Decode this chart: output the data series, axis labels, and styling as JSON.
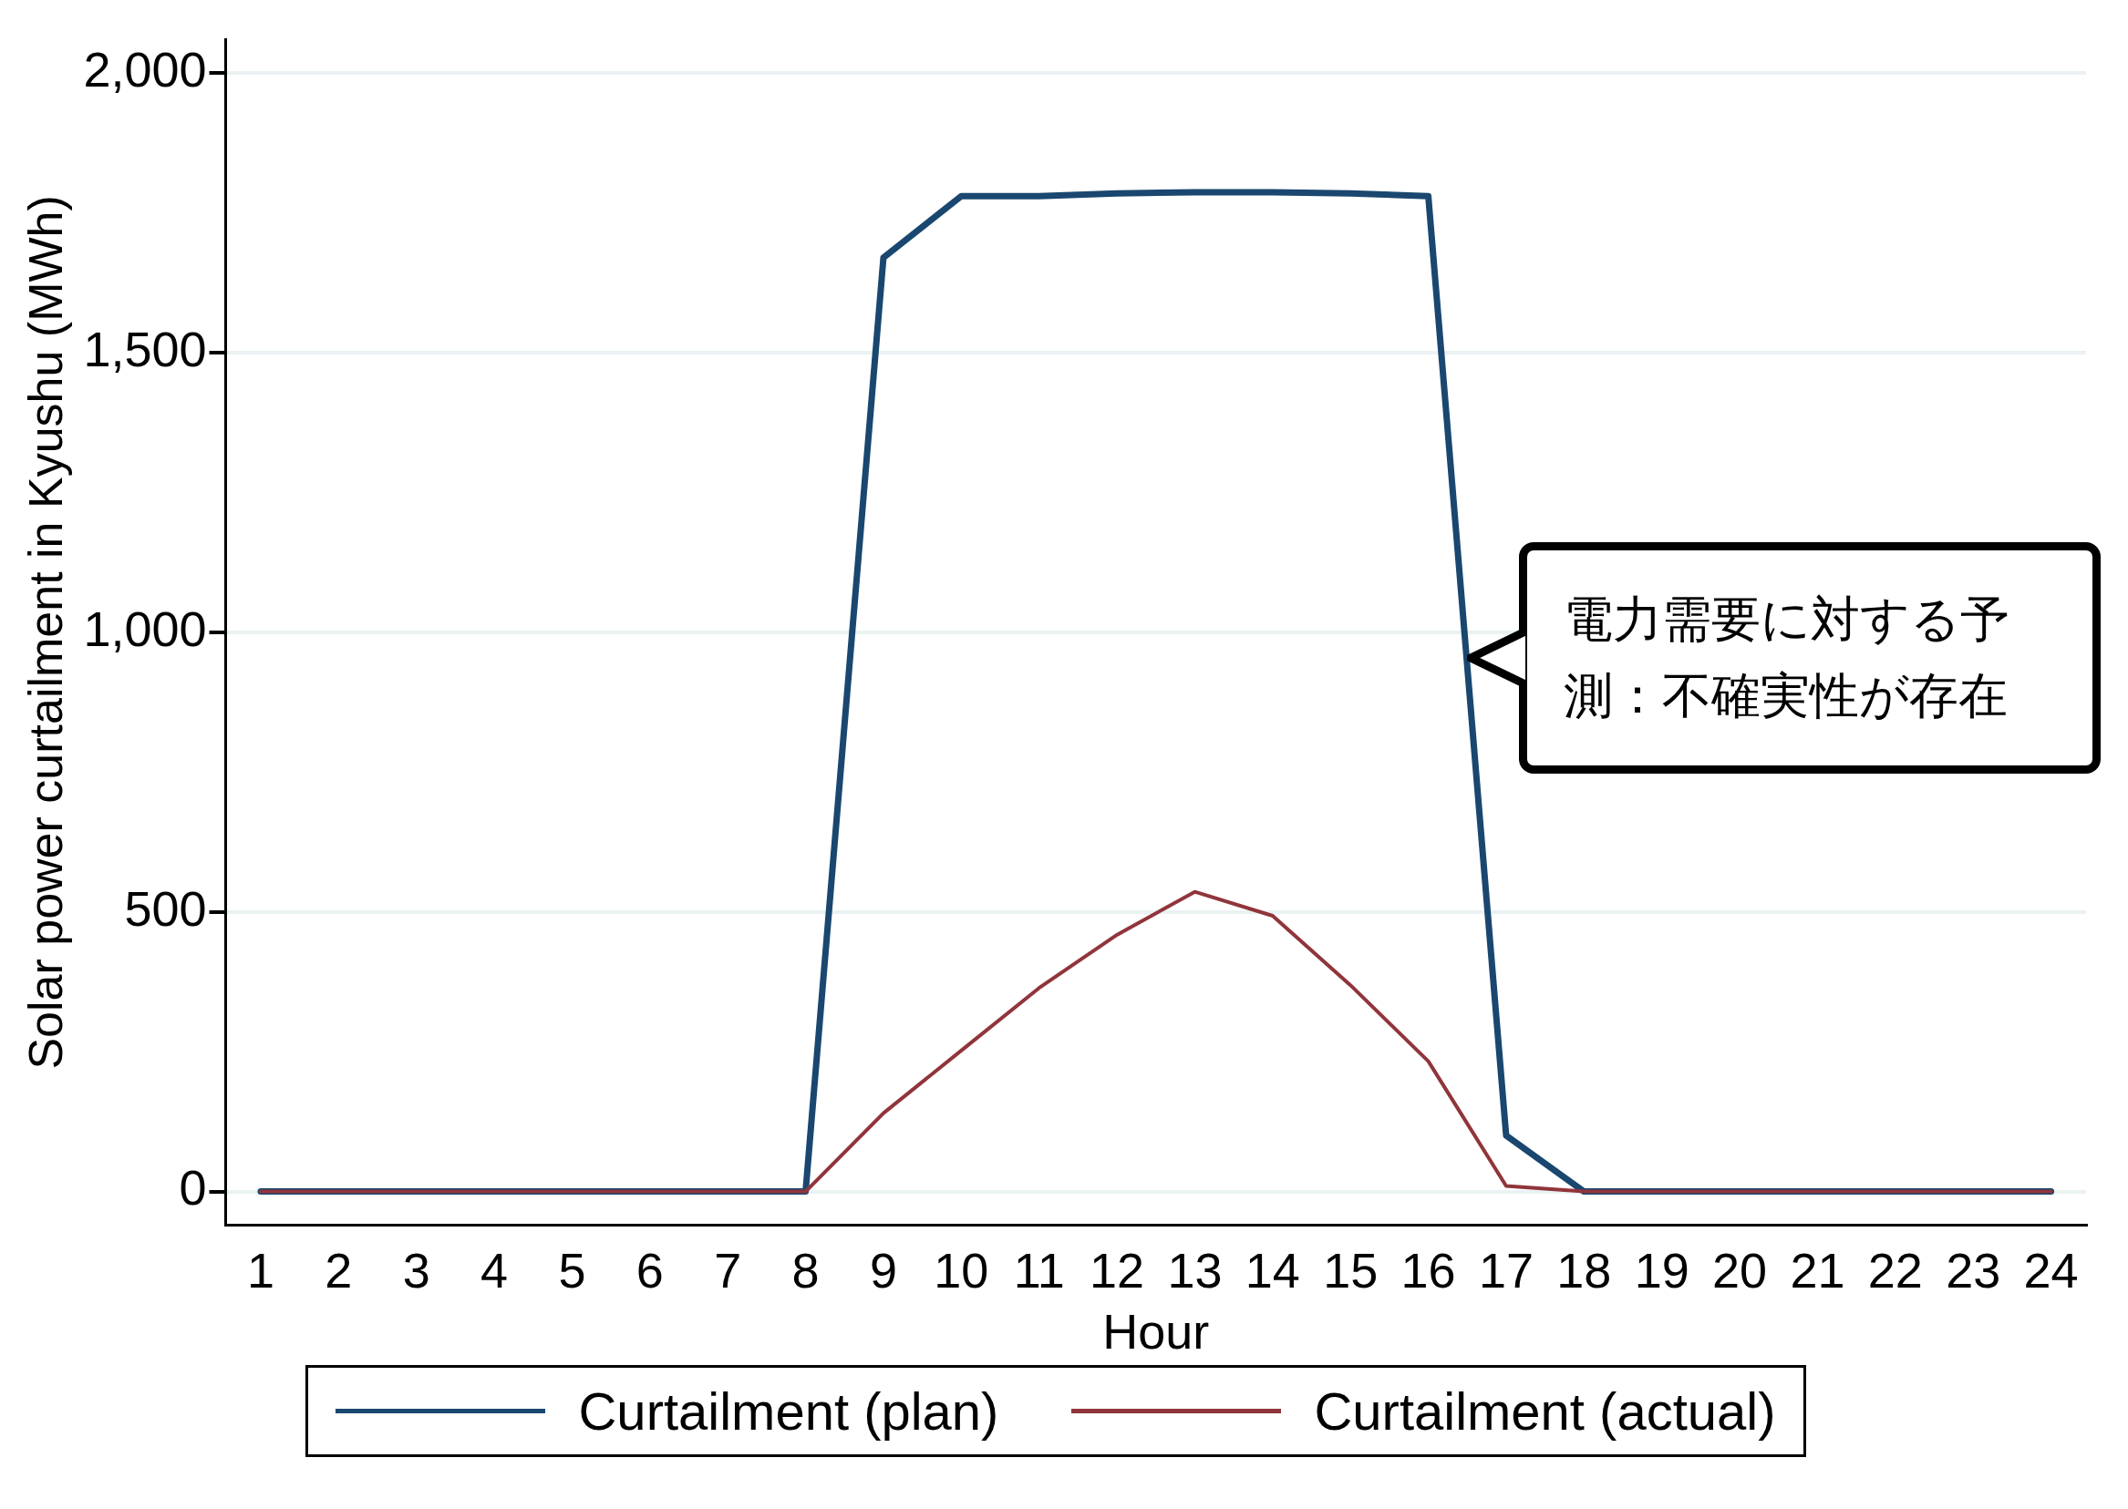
{
  "chart_data": {
    "type": "line",
    "xlabel": "Hour",
    "ylabel": "Solar power curtailment in Kyushu (MWh)",
    "x": [
      1,
      2,
      3,
      4,
      5,
      6,
      7,
      8,
      9,
      10,
      11,
      12,
      13,
      14,
      15,
      16,
      17,
      18,
      19,
      20,
      21,
      22,
      23,
      24
    ],
    "series": [
      {
        "name": "Curtailment (plan)",
        "color": "#1a476f",
        "values": [
          0,
          0,
          0,
          0,
          0,
          0,
          0,
          0,
          1670,
          1780,
          1780,
          1785,
          1787,
          1787,
          1785,
          1780,
          100,
          0,
          0,
          0,
          0,
          0,
          0,
          0
        ]
      },
      {
        "name": "Curtailment (actual)",
        "color": "#90353b",
        "values": [
          0,
          0,
          0,
          0,
          0,
          0,
          0,
          0,
          140,
          252,
          364,
          459,
          536,
          493,
          369,
          233,
          10,
          0,
          0,
          0,
          0,
          0,
          0,
          0
        ]
      }
    ],
    "xlim": [
      0.55,
      24.45
    ],
    "xticks": [
      1,
      2,
      3,
      4,
      5,
      6,
      7,
      8,
      9,
      10,
      11,
      12,
      13,
      14,
      15,
      16,
      17,
      18,
      19,
      20,
      21,
      22,
      23,
      24
    ],
    "ylim": [
      -60,
      2060
    ],
    "yticks": [
      0,
      500,
      {
        "value": 1000,
        "label": "1,000"
      },
      {
        "value": 1500,
        "label": "1,500"
      },
      {
        "value": 2000,
        "label": "2,000"
      }
    ],
    "grid": "y",
    "legend": "bottom",
    "marker": "none",
    "line_style": "solid",
    "annotations": [
      {
        "text": "電力需要に対する予測：不確実性が存在",
        "x": 16.5,
        "y": 950
      }
    ]
  }
}
